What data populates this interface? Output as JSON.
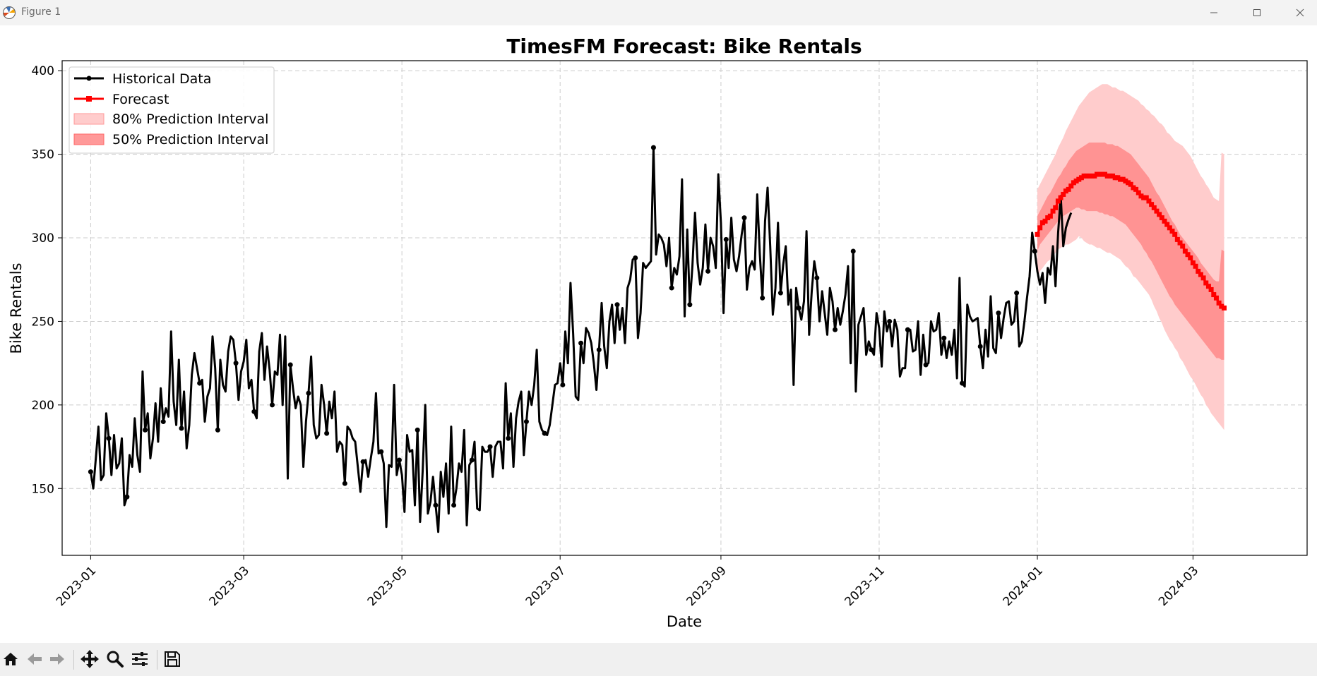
{
  "window": {
    "title": "Figure 1",
    "minimize_icon": "minimize-icon",
    "maximize_icon": "maximize-icon",
    "close_icon": "close-icon"
  },
  "toolbar": {
    "buttons": [
      {
        "name": "home",
        "icon": "home-icon"
      },
      {
        "name": "back",
        "icon": "arrow-left-icon"
      },
      {
        "name": "forward",
        "icon": "arrow-right-icon"
      },
      {
        "name": "pan",
        "icon": "move-icon"
      },
      {
        "name": "zoom",
        "icon": "magnifier-icon"
      },
      {
        "name": "configure-subplots",
        "icon": "sliders-icon"
      },
      {
        "name": "save",
        "icon": "floppy-disk-icon"
      }
    ]
  },
  "chart_data": {
    "type": "line",
    "title": "TimesFM Forecast: Bike Rentals",
    "xlabel": "Date",
    "ylabel": "Bike Rentals",
    "xlim": [
      "2022-12-21",
      "2024-04-14"
    ],
    "ylim": [
      110,
      406
    ],
    "grid": true,
    "grid_style": "dashed",
    "legend_position": "top-left",
    "x_ticks": [
      "2023-01",
      "2023-03",
      "2023-05",
      "2023-07",
      "2023-09",
      "2023-11",
      "2024-01",
      "2024-03"
    ],
    "y_ticks": [
      150,
      200,
      250,
      300,
      350,
      400
    ],
    "series": [
      {
        "name": "Historical Data",
        "color": "#000000",
        "marker": "circle",
        "x_start": "2023-01-01",
        "interval": "daily",
        "values": [
          160,
          150,
          168,
          187,
          155,
          158,
          195,
          180,
          158,
          182,
          162,
          165,
          180,
          140,
          145,
          170,
          163,
          192,
          170,
          160,
          220,
          185,
          195,
          168,
          180,
          201,
          178,
          210,
          190,
          198,
          193,
          244,
          202,
          188,
          227,
          186,
          208,
          174,
          188,
          218,
          231,
          222,
          213,
          215,
          190,
          205,
          210,
          241,
          222,
          185,
          227,
          212,
          208,
          232,
          241,
          239,
          225,
          203,
          220,
          226,
          239,
          210,
          215,
          196,
          192,
          232,
          243,
          215,
          235,
          221,
          200,
          220,
          218,
          242,
          200,
          241,
          156,
          224,
          210,
          198,
          205,
          200,
          163,
          190,
          207,
          229,
          188,
          180,
          182,
          212,
          200,
          183,
          202,
          192,
          208,
          172,
          178,
          176,
          153,
          187,
          185,
          180,
          178,
          163,
          148,
          166,
          167,
          157,
          168,
          178,
          207,
          171,
          172,
          165,
          127,
          164,
          163,
          212,
          158,
          167,
          158,
          136,
          182,
          172,
          173,
          140,
          185,
          130,
          160,
          200,
          135,
          142,
          157,
          140,
          124,
          160,
          145,
          165,
          135,
          187,
          140,
          150,
          165,
          160,
          185,
          128,
          164,
          167,
          178,
          138,
          137,
          175,
          172,
          172,
          175,
          157,
          175,
          178,
          178,
          162,
          213,
          180,
          195,
          163,
          192,
          202,
          208,
          170,
          190,
          208,
          200,
          212,
          233,
          190,
          185,
          183,
          182,
          188,
          200,
          212,
          213,
          225,
          212,
          244,
          225,
          273,
          243,
          205,
          203,
          237,
          225,
          246,
          243,
          237,
          225,
          209,
          233,
          261,
          235,
          222,
          250,
          260,
          237,
          260,
          245,
          258,
          237,
          270,
          275,
          287,
          288,
          240,
          255,
          285,
          282,
          284,
          286,
          354,
          290,
          302,
          300,
          296,
          283,
          300,
          270,
          282,
          278,
          289,
          335,
          253,
          305,
          260,
          283,
          315,
          285,
          272,
          282,
          308,
          280,
          300,
          295,
          282,
          338,
          309,
          255,
          299,
          282,
          312,
          287,
          280,
          289,
          302,
          312,
          269,
          282,
          286,
          281,
          326,
          290,
          264,
          310,
          330,
          295,
          254,
          270,
          309,
          267,
          284,
          295,
          260,
          269,
          212,
          270,
          258,
          251,
          262,
          304,
          242,
          268,
          286,
          276,
          250,
          268,
          255,
          242,
          270,
          262,
          245,
          258,
          248,
          256,
          266,
          283,
          225,
          292,
          208,
          248,
          253,
          258,
          230,
          238,
          233,
          230,
          255,
          246,
          223,
          256,
          244,
          250,
          235,
          251,
          245,
          217,
          222,
          222,
          245,
          245,
          232,
          233,
          250,
          218,
          242,
          224,
          225,
          250,
          244,
          245,
          255,
          230,
          240,
          228,
          238,
          230,
          245,
          216,
          276,
          213,
          211,
          260,
          253,
          250,
          251,
          252,
          235,
          222,
          245,
          229,
          265,
          234,
          231,
          255,
          240,
          252,
          261,
          262,
          248,
          250,
          267,
          235,
          238,
          250,
          264,
          277,
          303,
          292,
          280,
          272,
          279,
          261,
          282,
          278,
          295,
          271,
          303,
          325,
          295,
          306,
          311,
          315
        ]
      },
      {
        "name": "Forecast",
        "color": "#ff0000",
        "marker": "square",
        "x_start": "2024-01-01",
        "interval": "daily",
        "values": [
          302,
          306,
          309,
          310,
          312,
          313,
          316,
          318,
          322,
          324,
          326,
          328,
          329,
          331,
          333,
          334,
          335,
          336,
          337,
          337,
          337,
          337,
          337,
          338,
          338,
          338,
          338,
          337,
          337,
          337,
          336,
          336,
          335,
          335,
          334,
          333,
          332,
          330,
          329,
          327,
          325,
          324,
          324,
          322,
          320,
          318,
          316,
          314,
          312,
          310,
          308,
          306,
          304,
          302,
          299,
          297,
          295,
          292,
          290,
          288,
          285,
          283,
          280,
          278,
          276,
          273,
          271,
          269,
          266,
          264,
          261,
          259,
          258
        ]
      },
      {
        "name": "80% Prediction Interval",
        "color": "#ffcccc",
        "x_start": "2024-01-01",
        "interval": "daily",
        "lower": [
          275,
          280,
          282,
          284,
          286,
          287,
          289,
          291,
          293,
          294,
          295,
          296,
          296,
          297,
          298,
          299,
          301,
          300,
          298,
          297,
          296,
          296,
          295,
          294,
          294,
          293,
          292,
          291,
          291,
          290,
          289,
          288,
          287,
          285,
          283,
          282,
          280,
          277,
          276,
          274,
          272,
          270,
          268,
          266,
          263,
          259,
          256,
          252,
          249,
          245,
          242,
          239,
          237,
          234,
          232,
          228,
          226,
          223,
          220,
          217,
          215,
          212,
          209,
          206,
          204,
          200,
          198,
          195,
          193,
          191,
          189,
          187,
          185
        ],
        "upper": [
          329,
          332,
          335,
          338,
          341,
          344,
          347,
          350,
          354,
          357,
          360,
          364,
          367,
          370,
          373,
          376,
          379,
          381,
          383,
          385,
          387,
          388,
          389,
          390,
          391,
          392,
          392,
          392,
          391,
          390,
          390,
          389,
          388,
          388,
          387,
          386,
          385,
          384,
          383,
          382,
          380,
          379,
          377,
          376,
          374,
          373,
          371,
          369,
          368,
          366,
          363,
          362,
          360,
          358,
          357,
          356,
          355,
          353,
          351,
          349,
          346,
          343,
          340,
          337,
          335,
          332,
          330,
          327,
          324,
          323,
          322,
          351,
          350
        ]
      },
      {
        "name": "50% Prediction Interval",
        "color": "#ff8080",
        "x_start": "2024-01-01",
        "interval": "daily",
        "lower": [
          292,
          296,
          298,
          300,
          302,
          304,
          306,
          308,
          310,
          311,
          313,
          314,
          315,
          316,
          317,
          318,
          318,
          317,
          317,
          316,
          316,
          316,
          316,
          316,
          315,
          315,
          314,
          314,
          313,
          313,
          312,
          311,
          310,
          309,
          308,
          306,
          304,
          302,
          300,
          298,
          296,
          293,
          291,
          288,
          286,
          283,
          280,
          277,
          274,
          271,
          268,
          265,
          263,
          260,
          258,
          256,
          254,
          252,
          250,
          248,
          246,
          244,
          242,
          240,
          238,
          236,
          234,
          232,
          230,
          228,
          228,
          227,
          227
        ],
        "upper": [
          313,
          316,
          319,
          322,
          325,
          327,
          330,
          333,
          336,
          338,
          341,
          343,
          346,
          348,
          350,
          352,
          353,
          354,
          355,
          356,
          357,
          357,
          357,
          357,
          357,
          357,
          357,
          356,
          356,
          356,
          355,
          355,
          354,
          353,
          352,
          351,
          350,
          348,
          346,
          344,
          342,
          340,
          338,
          336,
          333,
          330,
          327,
          325,
          322,
          319,
          316,
          313,
          310,
          308,
          305,
          302,
          300,
          298,
          296,
          294,
          292,
          290,
          288,
          285,
          283,
          281,
          279,
          277,
          275,
          274,
          274,
          293,
          292
        ]
      }
    ],
    "historical_marker_dates": [
      "2023-01-01",
      "2023-01-08",
      "2023-01-15",
      "2023-01-22",
      "2023-01-29",
      "2023-02-05",
      "2023-02-12",
      "2023-02-19",
      "2023-02-26",
      "2023-03-05",
      "2023-03-12",
      "2023-03-19",
      "2023-03-26",
      "2023-04-02",
      "2023-04-09",
      "2023-04-16",
      "2023-04-23",
      "2023-04-30",
      "2023-05-07",
      "2023-05-14",
      "2023-05-21",
      "2023-05-28",
      "2023-06-04",
      "2023-06-11",
      "2023-06-18",
      "2023-06-25",
      "2023-07-02",
      "2023-07-09",
      "2023-07-16",
      "2023-07-23",
      "2023-07-30",
      "2023-08-06",
      "2023-08-13",
      "2023-08-20",
      "2023-08-27",
      "2023-09-03",
      "2023-09-10",
      "2023-09-17",
      "2023-09-24",
      "2023-10-01",
      "2023-10-08",
      "2023-10-15",
      "2023-10-22",
      "2023-10-29",
      "2023-11-05",
      "2023-11-12",
      "2023-11-19",
      "2023-11-26",
      "2023-12-03",
      "2023-12-10",
      "2023-12-17",
      "2023-12-24",
      "2023-12-31"
    ]
  }
}
